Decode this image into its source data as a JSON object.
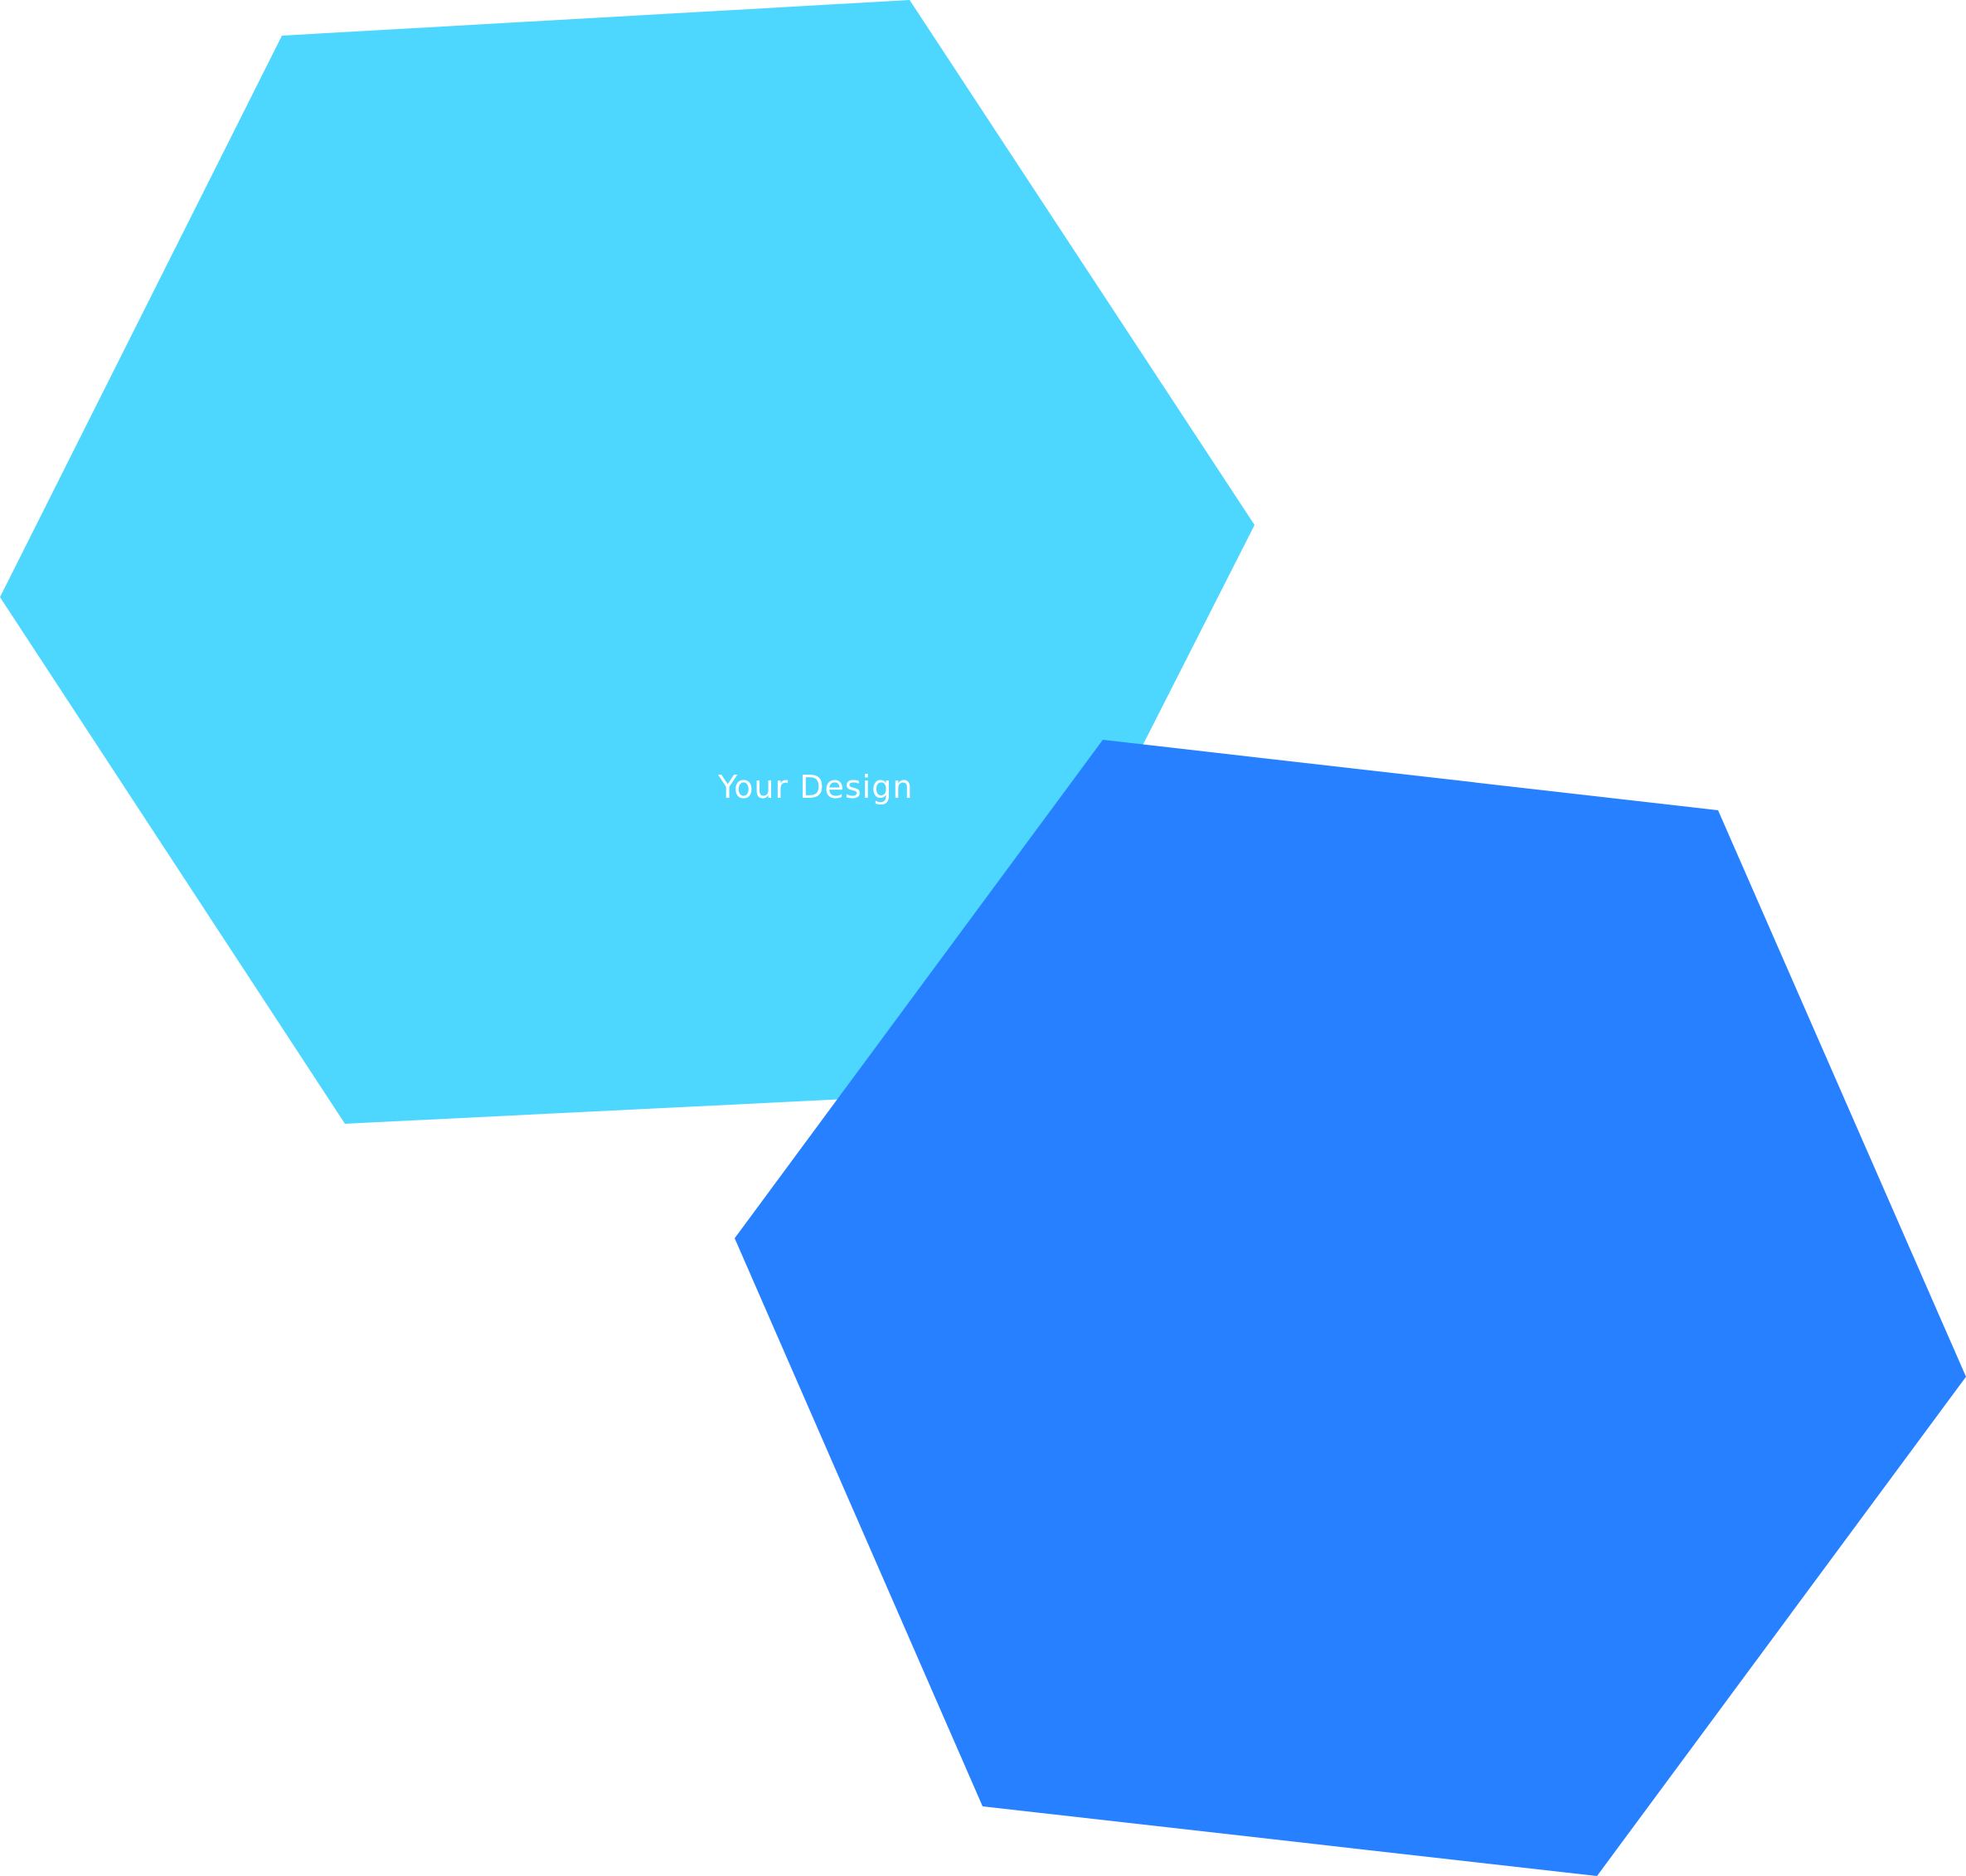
{
  "design": {
    "caption": "Your Design"
  },
  "colors": {
    "background": "#ffffff",
    "hexagon_light": "#4dd7ff",
    "hexagon_dark": "#2680ff",
    "caption_text": "#ffffff"
  }
}
